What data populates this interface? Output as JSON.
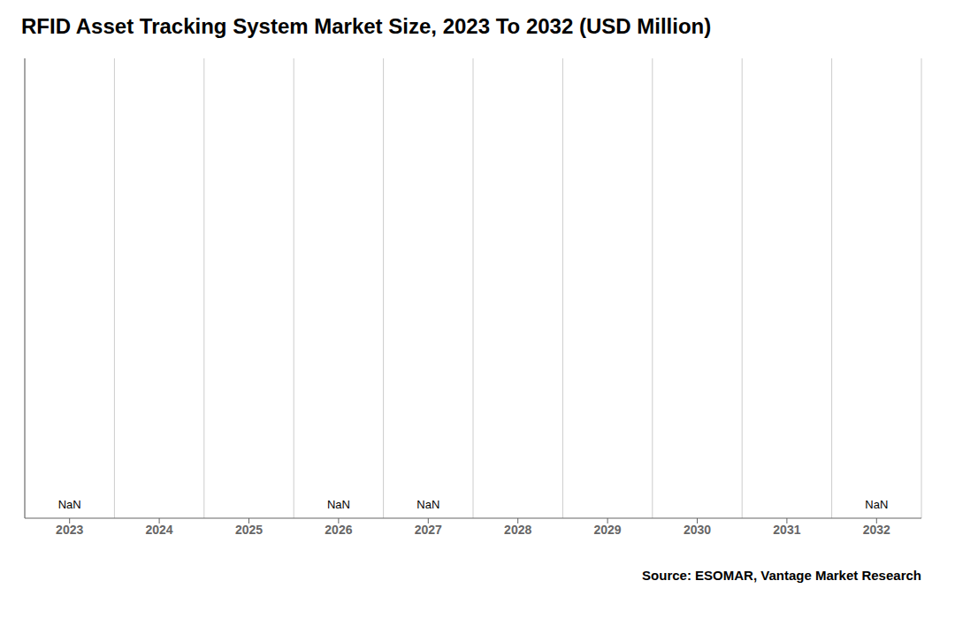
{
  "chart_data": {
    "type": "bar",
    "title": "RFID Asset Tracking System Market Size, 2023 To 2032 (USD Million)",
    "categories": [
      "2023",
      "2024",
      "2025",
      "2026",
      "2027",
      "2028",
      "2029",
      "2030",
      "2031",
      "2032"
    ],
    "values": [
      null,
      null,
      null,
      null,
      null,
      null,
      null,
      null,
      null,
      null
    ],
    "value_labels": [
      "NaN",
      null,
      null,
      "NaN",
      "NaN",
      null,
      null,
      null,
      null,
      "NaN"
    ],
    "data_labels": true,
    "ylim": [
      0,
      1
    ],
    "tick_labels": "x",
    "grid": true,
    "annotations": [
      "Source: ESOMAR, Vantage Market Research"
    ]
  }
}
